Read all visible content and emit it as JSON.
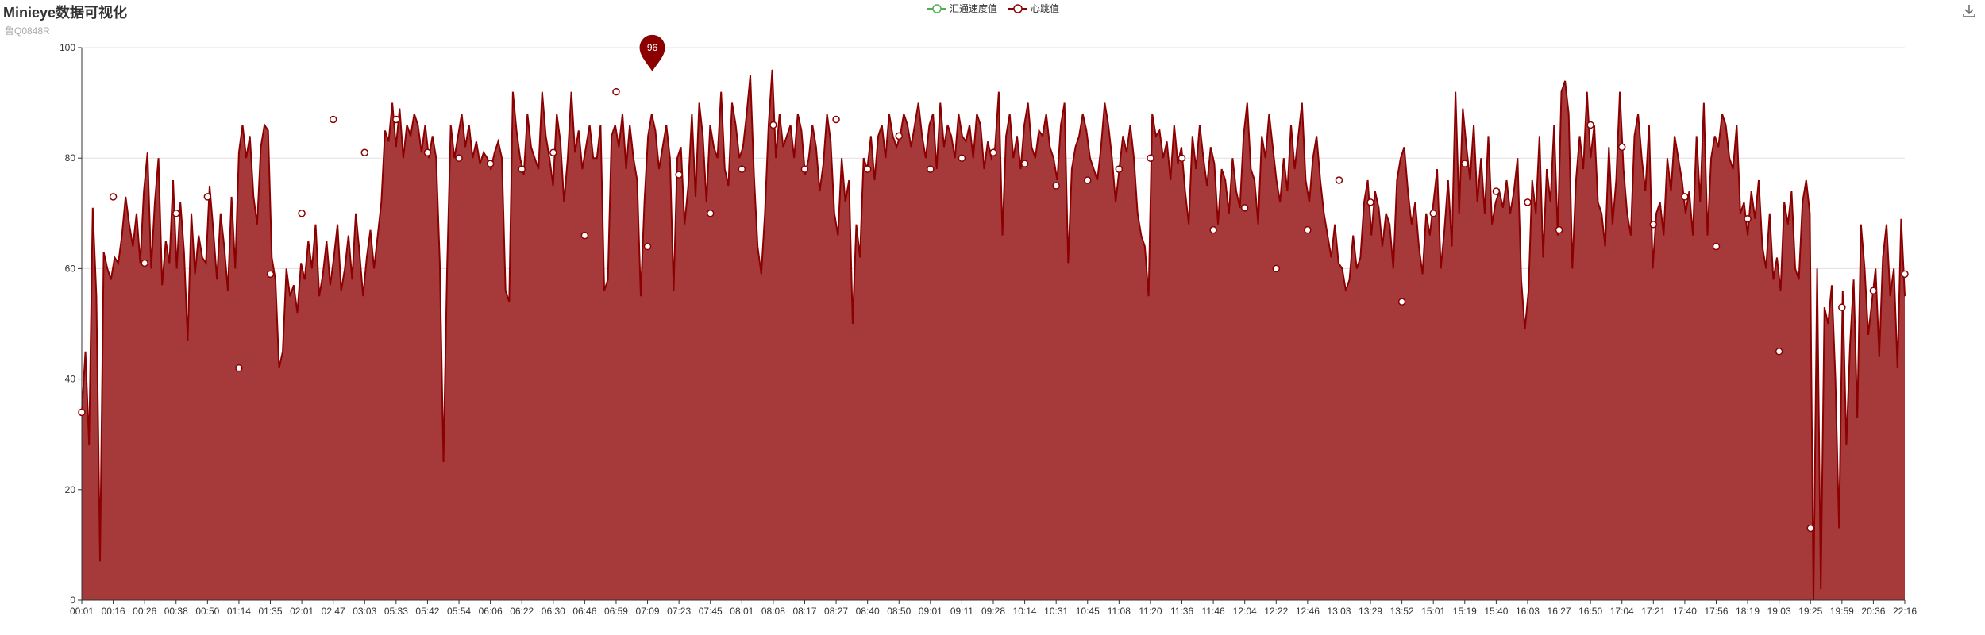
{
  "header": {
    "title": "Minieye数据可视化",
    "subtitle": "鲁Q0848R"
  },
  "toolbox": {
    "save_icon": "download-icon"
  },
  "colors": {
    "speed_series": "#4caf50",
    "heart_series": "#8b0000",
    "heart_fill": "#a63a3a",
    "grid": "#e0e0e0",
    "axis": "#333333"
  },
  "chart_data": {
    "type": "area",
    "title": "Minieye数据可视化",
    "subtitle": "鲁Q0848R",
    "xlabel": "",
    "ylabel": "",
    "ylim": [
      0,
      100
    ],
    "yticks": [
      0,
      20,
      40,
      60,
      80,
      100
    ],
    "grid": true,
    "legend_position": "top-center",
    "x_tick_labels": [
      "00:01",
      "00:16",
      "00:26",
      "00:38",
      "00:50",
      "01:14",
      "01:35",
      "02:01",
      "02:47",
      "03:03",
      "05:33",
      "05:42",
      "05:54",
      "06:06",
      "06:22",
      "06:30",
      "06:46",
      "06:59",
      "07:09",
      "07:23",
      "07:45",
      "08:01",
      "08:08",
      "08:17",
      "08:27",
      "08:40",
      "08:50",
      "09:01",
      "09:11",
      "09:28",
      "10:14",
      "10:31",
      "10:45",
      "11:08",
      "11:20",
      "11:36",
      "11:46",
      "12:04",
      "12:22",
      "12:46",
      "13:03",
      "13:29",
      "13:52",
      "15:01",
      "15:19",
      "15:40",
      "16:03",
      "16:27",
      "16:50",
      "17:04",
      "17:21",
      "17:40",
      "17:56",
      "18:19",
      "19:03",
      "19:25",
      "19:59",
      "20:36",
      "22:16"
    ],
    "series": [
      {
        "name": "汇通速度值",
        "values": []
      },
      {
        "name": "心跳值",
        "values": [
          34,
          45,
          28,
          71,
          55,
          7,
          63,
          60,
          58,
          62,
          61,
          66,
          73,
          68,
          64,
          70,
          61,
          74,
          81,
          60,
          72,
          80,
          57,
          65,
          61,
          76,
          60,
          72,
          63,
          47,
          70,
          59,
          66,
          62,
          61,
          75,
          67,
          58,
          70,
          64,
          56,
          73,
          60,
          81,
          86,
          80,
          84,
          73,
          68,
          82,
          86,
          85,
          62,
          58,
          42,
          45,
          60,
          55,
          57,
          52,
          61,
          58,
          65,
          60,
          68,
          55,
          59,
          65,
          57,
          62,
          68,
          56,
          60,
          66,
          58,
          70,
          63,
          55,
          62,
          67,
          60,
          66,
          72,
          85,
          83,
          90,
          82,
          89,
          80,
          86,
          84,
          88,
          86,
          81,
          86,
          80,
          84,
          80,
          61,
          25,
          60,
          86,
          80,
          84,
          88,
          82,
          86,
          80,
          83,
          79,
          81,
          80,
          78,
          81,
          83,
          80,
          56,
          54,
          92,
          85,
          80,
          77,
          88,
          82,
          80,
          78,
          92,
          84,
          80,
          75,
          88,
          83,
          72,
          80,
          92,
          81,
          85,
          78,
          82,
          86,
          80,
          80,
          86,
          56,
          58,
          84,
          86,
          82,
          88,
          78,
          86,
          80,
          76,
          55,
          72,
          84,
          88,
          85,
          78,
          82,
          86,
          80,
          56,
          80,
          82,
          68,
          75,
          88,
          73,
          90,
          84,
          72,
          86,
          82,
          80,
          92,
          78,
          75,
          90,
          86,
          80,
          82,
          88,
          95,
          77,
          64,
          59,
          70,
          86,
          96,
          80,
          88,
          82,
          84,
          86,
          80,
          88,
          85,
          77,
          80,
          86,
          82,
          74,
          79,
          88,
          83,
          70,
          66,
          80,
          72,
          76,
          50,
          68,
          62,
          80,
          78,
          84,
          76,
          84,
          86,
          80,
          88,
          84,
          82,
          84,
          88,
          86,
          82,
          86,
          90,
          84,
          80,
          86,
          88,
          78,
          90,
          82,
          86,
          84,
          80,
          88,
          84,
          83,
          86,
          80,
          88,
          86,
          78,
          83,
          80,
          82,
          92,
          66,
          84,
          88,
          80,
          84,
          78,
          86,
          90,
          82,
          80,
          85,
          84,
          88,
          82,
          80,
          76,
          86,
          90,
          61,
          78,
          82,
          84,
          88,
          85,
          80,
          78,
          76,
          82,
          90,
          86,
          80,
          72,
          78,
          84,
          81,
          86,
          80,
          70,
          66,
          64,
          55,
          88,
          84,
          85,
          80,
          83,
          76,
          86,
          79,
          82,
          74,
          68,
          84,
          78,
          86,
          80,
          75,
          82,
          79,
          68,
          78,
          76,
          70,
          80,
          74,
          71,
          84,
          90,
          78,
          76,
          68,
          84,
          80,
          88,
          82,
          76,
          72,
          80,
          74,
          86,
          78,
          84,
          90,
          76,
          72,
          80,
          84,
          76,
          70,
          66,
          62,
          68,
          61,
          60,
          56,
          58,
          66,
          60,
          62,
          72,
          76,
          66,
          74,
          71,
          64,
          70,
          68,
          60,
          76,
          80,
          82,
          74,
          68,
          72,
          64,
          59,
          70,
          66,
          72,
          78,
          60,
          67,
          76,
          64,
          92,
          70,
          89,
          82,
          76,
          86,
          72,
          80,
          70,
          84,
          68,
          72,
          74,
          71,
          76,
          70,
          74,
          80,
          58,
          49,
          56,
          76,
          70,
          84,
          62,
          78,
          72,
          86,
          66,
          92,
          94,
          88,
          60,
          76,
          84,
          78,
          92,
          80,
          86,
          72,
          70,
          64,
          82,
          68,
          76,
          92,
          78,
          70,
          66,
          84,
          88,
          80,
          74,
          86,
          60,
          70,
          72,
          66,
          80,
          74,
          84,
          80,
          76,
          70,
          74,
          66,
          84,
          72,
          90,
          66,
          80,
          84,
          82,
          88,
          86,
          80,
          78,
          86,
          70,
          72,
          66,
          74,
          69,
          76,
          64,
          60,
          70,
          58,
          62,
          56,
          72,
          68,
          74,
          60,
          58,
          72,
          76,
          70,
          0,
          60,
          2,
          53,
          50,
          57,
          40,
          13,
          56,
          28,
          46,
          58,
          33,
          68,
          60,
          48,
          54,
          60,
          44,
          62,
          68,
          55,
          60,
          42,
          69,
          55
        ]
      }
    ],
    "markers": [
      {
        "x": "00:01",
        "value": 34
      },
      {
        "x": "00:16",
        "value": 73
      },
      {
        "x": "00:26",
        "value": 61
      },
      {
        "x": "00:38",
        "value": 70
      },
      {
        "x": "00:50",
        "value": 73
      },
      {
        "x": "01:14",
        "value": 42
      },
      {
        "x": "01:35",
        "value": 59
      },
      {
        "x": "02:01",
        "value": 70
      },
      {
        "x": "02:47",
        "value": 87
      },
      {
        "x": "03:03",
        "value": 81
      },
      {
        "x": "05:33",
        "value": 87
      },
      {
        "x": "05:42",
        "value": 81
      },
      {
        "x": "05:54",
        "value": 80
      },
      {
        "x": "06:06",
        "value": 79
      },
      {
        "x": "06:22",
        "value": 78
      },
      {
        "x": "06:30",
        "value": 81
      },
      {
        "x": "06:46",
        "value": 66
      },
      {
        "x": "06:59",
        "value": 92
      },
      {
        "x": "07:09",
        "value": 64
      },
      {
        "x": "07:23",
        "value": 77
      },
      {
        "x": "07:45",
        "value": 70
      },
      {
        "x": "08:01",
        "value": 78
      },
      {
        "x": "08:08",
        "value": 86
      },
      {
        "x": "08:17",
        "value": 78
      },
      {
        "x": "08:27",
        "value": 87
      },
      {
        "x": "08:40",
        "value": 78
      },
      {
        "x": "08:50",
        "value": 84
      },
      {
        "x": "09:01",
        "value": 78
      },
      {
        "x": "09:11",
        "value": 80
      },
      {
        "x": "09:28",
        "value": 81
      },
      {
        "x": "10:14",
        "value": 79
      },
      {
        "x": "10:31",
        "value": 75
      },
      {
        "x": "10:45",
        "value": 76
      },
      {
        "x": "11:08",
        "value": 78
      },
      {
        "x": "11:20",
        "value": 80
      },
      {
        "x": "11:36",
        "value": 80
      },
      {
        "x": "11:46",
        "value": 67
      },
      {
        "x": "12:04",
        "value": 71
      },
      {
        "x": "12:22",
        "value": 60
      },
      {
        "x": "12:46",
        "value": 67
      },
      {
        "x": "13:03",
        "value": 76
      },
      {
        "x": "13:29",
        "value": 72
      },
      {
        "x": "13:52",
        "value": 54
      },
      {
        "x": "15:01",
        "value": 70
      },
      {
        "x": "15:19",
        "value": 79
      },
      {
        "x": "15:40",
        "value": 74
      },
      {
        "x": "16:03",
        "value": 72
      },
      {
        "x": "16:27",
        "value": 67
      },
      {
        "x": "16:50",
        "value": 86
      },
      {
        "x": "17:04",
        "value": 82
      },
      {
        "x": "17:21",
        "value": 68
      },
      {
        "x": "17:40",
        "value": 73
      },
      {
        "x": "17:56",
        "value": 64
      },
      {
        "x": "18:19",
        "value": 69
      },
      {
        "x": "19:03",
        "value": 45
      },
      {
        "x": "19:25",
        "value": 13
      },
      {
        "x": "19:59",
        "value": 53
      },
      {
        "x": "20:36",
        "value": 56
      },
      {
        "x": "22:16",
        "value": 59
      }
    ],
    "max_label": {
      "x": "07:09",
      "value": 96
    }
  }
}
